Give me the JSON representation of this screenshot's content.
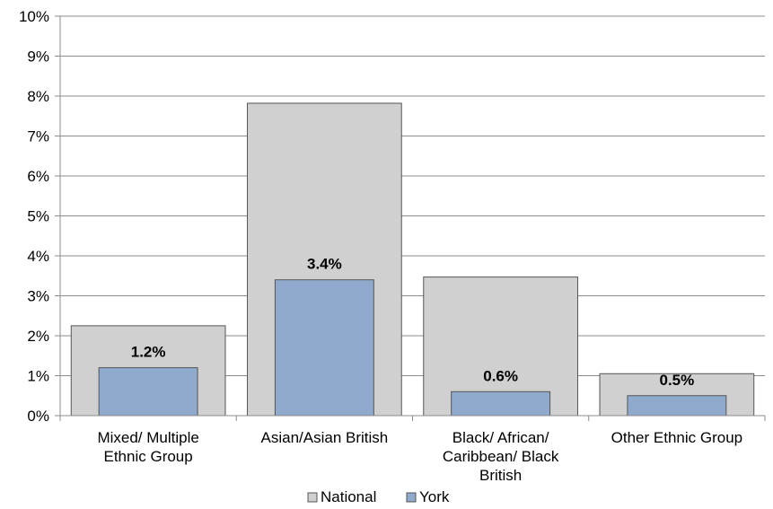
{
  "chart_data": {
    "type": "bar",
    "categories": [
      [
        "Mixed/ Multiple",
        "Ethnic Group"
      ],
      [
        "Asian/Asian British"
      ],
      [
        "Black/ African/",
        "Caribbean/ Black",
        "British"
      ],
      [
        "Other Ethnic Group"
      ]
    ],
    "series": [
      {
        "name": "National",
        "values": [
          2.25,
          7.82,
          3.47,
          1.05
        ],
        "color": "#d0d0d0"
      },
      {
        "name": "York",
        "values": [
          1.2,
          3.4,
          0.6,
          0.5
        ],
        "color": "#8faacc"
      }
    ],
    "data_labels": [
      "1.2%",
      "3.4%",
      "0.6%",
      "0.5%"
    ],
    "y_ticks": [
      "0%",
      "1%",
      "2%",
      "3%",
      "4%",
      "5%",
      "6%",
      "7%",
      "8%",
      "9%",
      "10%"
    ],
    "ylim": [
      0,
      10
    ],
    "grid": true,
    "legend_position": "bottom",
    "title": "",
    "xlabel": "",
    "ylabel": ""
  }
}
